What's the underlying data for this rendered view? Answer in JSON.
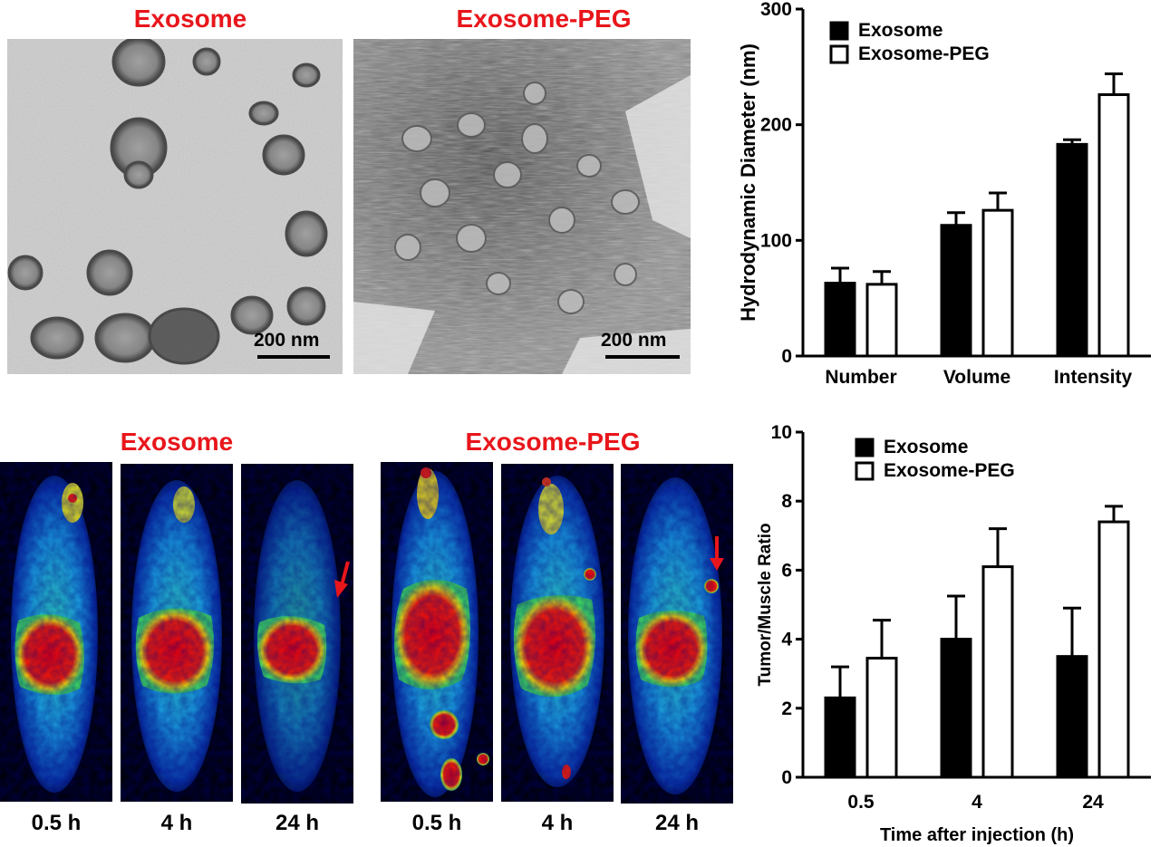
{
  "panels": {
    "tem": {
      "titles": [
        "Exosome",
        "Exosome-PEG"
      ],
      "scale_labels": [
        "200 nm",
        "200 nm"
      ]
    },
    "pet": {
      "titles": [
        "Exosome",
        "Exosome-PEG"
      ],
      "time_labels": [
        "0.5 h",
        "4 h",
        "24 h",
        "0.5 h",
        "4 h",
        "24 h"
      ]
    }
  },
  "colors": {
    "title_red": "#e8161b",
    "arrow_red": "#e8161b",
    "bar_black": "#000000",
    "bar_white": "#ffffff"
  },
  "chart_data": [
    {
      "type": "bar",
      "categories": [
        "Number",
        "Volume",
        "Intensity"
      ],
      "series": [
        {
          "name": "Exosome",
          "values": [
            63,
            113,
            183
          ],
          "errors": [
            13,
            11,
            4
          ],
          "fill": "black"
        },
        {
          "name": "Exosome-PEG",
          "values": [
            62,
            126,
            226
          ],
          "errors": [
            11,
            15,
            18
          ],
          "fill": "white"
        }
      ],
      "title": "",
      "xlabel": "",
      "ylabel": "Hydrodynamic Diameter (nm)",
      "ylim": [
        0,
        300
      ],
      "yticks": [
        "0",
        "100",
        "200",
        "300"
      ],
      "legend": "top-left",
      "grid": false
    },
    {
      "type": "bar",
      "categories": [
        "0.5",
        "4",
        "24"
      ],
      "series": [
        {
          "name": "Exosome",
          "values": [
            2.3,
            4.0,
            3.5
          ],
          "errors": [
            0.9,
            1.25,
            1.4
          ],
          "fill": "black"
        },
        {
          "name": "Exosome-PEG",
          "values": [
            3.45,
            6.1,
            7.4
          ],
          "errors": [
            1.1,
            1.1,
            0.45
          ],
          "fill": "white"
        }
      ],
      "title": "",
      "xlabel": "Time after injection (h)",
      "ylabel": "Tumor/Muscle Ratio",
      "ylim": [
        0,
        10
      ],
      "yticks": [
        "0",
        "2",
        "4",
        "6",
        "8",
        "10"
      ],
      "legend": "top-left",
      "grid": false
    }
  ]
}
